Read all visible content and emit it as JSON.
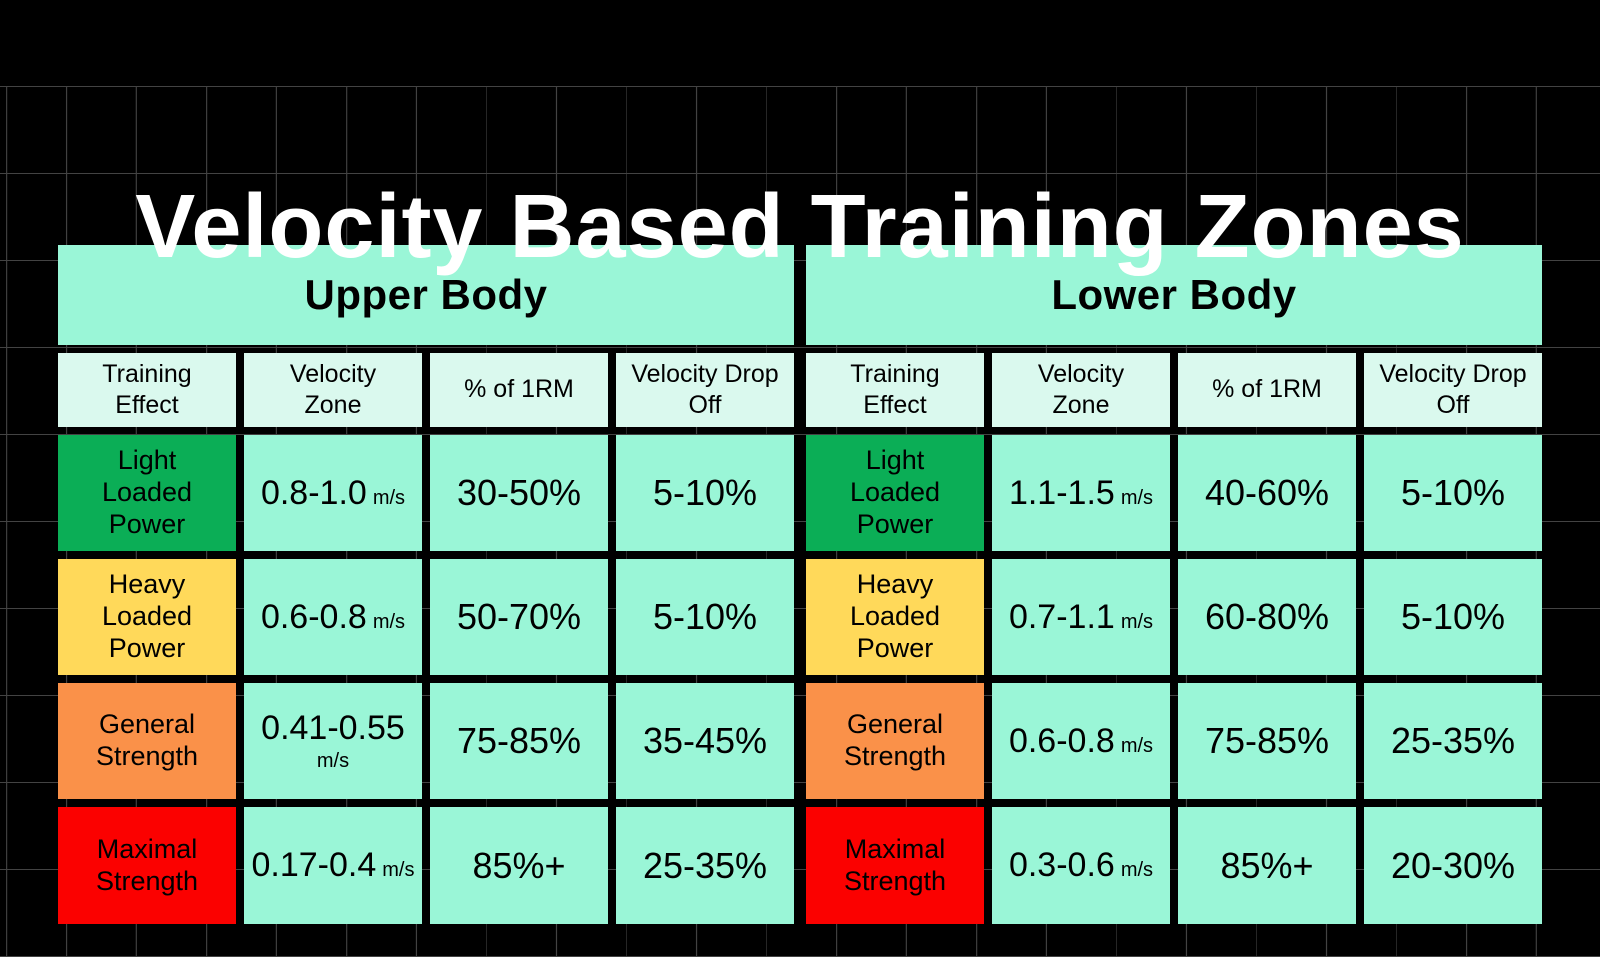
{
  "title": "Velocity Based Training Zones",
  "colors": {
    "background": "#000000",
    "grid_line": "#434343",
    "cell_mint": "#9AF6D7",
    "header_mint": "#DAF9EE",
    "light_loaded_power_green": "#0BAE56",
    "heavy_loaded_power_yellow": "#FFD95A",
    "general_strength_orange": "#FA9149",
    "maximal_strength_red": "#FB0100",
    "title_text": "#FFFFFF",
    "cell_text": "#000000"
  },
  "columns": [
    {
      "line1": "Training",
      "line2": "Effect"
    },
    {
      "line1": "Velocity",
      "line2": "Zone"
    },
    {
      "line1": "% of 1RM",
      "line2": ""
    },
    {
      "line1": "Velocity Drop",
      "line2": "Off"
    }
  ],
  "sections": [
    {
      "title": "Upper Body",
      "rows": [
        {
          "effect_line1": "Light",
          "effect_line2": "Loaded",
          "effect_line3": "Power",
          "velocity": "0.8-1.0",
          "unit": "m/s",
          "one_rm": "30-50%",
          "drop_off": "5-10%"
        },
        {
          "effect_line1": "Heavy",
          "effect_line2": "Loaded",
          "effect_line3": "Power",
          "velocity": "0.6-0.8",
          "unit": "m/s",
          "one_rm": "50-70%",
          "drop_off": "5-10%"
        },
        {
          "effect_line1": "General",
          "effect_line2": "Strength",
          "effect_line3": "",
          "velocity": "0.41-0.55",
          "unit": "m/s",
          "one_rm": "75-85%",
          "drop_off": "35-45%"
        },
        {
          "effect_line1": "Maximal",
          "effect_line2": "Strength",
          "effect_line3": "",
          "velocity": "0.17-0.4",
          "unit": "m/s",
          "one_rm": "85%+",
          "drop_off": "25-35%"
        }
      ]
    },
    {
      "title": "Lower Body",
      "rows": [
        {
          "effect_line1": "Light",
          "effect_line2": "Loaded",
          "effect_line3": "Power",
          "velocity": "1.1-1.5",
          "unit": "m/s",
          "one_rm": "40-60%",
          "drop_off": "5-10%"
        },
        {
          "effect_line1": "Heavy",
          "effect_line2": "Loaded",
          "effect_line3": "Power",
          "velocity": "0.7-1.1",
          "unit": "m/s",
          "one_rm": "60-80%",
          "drop_off": "5-10%"
        },
        {
          "effect_line1": "General",
          "effect_line2": "Strength",
          "effect_line3": "",
          "velocity": "0.6-0.8",
          "unit": "m/s",
          "one_rm": "75-85%",
          "drop_off": "25-35%"
        },
        {
          "effect_line1": "Maximal",
          "effect_line2": "Strength",
          "effect_line3": "",
          "velocity": "0.3-0.6",
          "unit": "m/s",
          "one_rm": "85%+",
          "drop_off": "20-30%"
        }
      ]
    }
  ],
  "chart_data": {
    "type": "table",
    "title": "Velocity Based Training Zones",
    "tables": [
      {
        "title": "Upper Body",
        "columns": [
          "Training Effect",
          "Velocity Zone",
          "% of 1RM",
          "Velocity Drop Off"
        ],
        "rows": [
          [
            "Light Loaded Power",
            "0.8-1.0 m/s",
            "30-50%",
            "5-10%"
          ],
          [
            "Heavy Loaded Power",
            "0.6-0.8 m/s",
            "50-70%",
            "5-10%"
          ],
          [
            "General Strength",
            "0.41-0.55 m/s",
            "75-85%",
            "35-45%"
          ],
          [
            "Maximal Strength",
            "0.17-0.4 m/s",
            "85%+",
            "25-35%"
          ]
        ]
      },
      {
        "title": "Lower Body",
        "columns": [
          "Training Effect",
          "Velocity Zone",
          "% of 1RM",
          "Velocity Drop Off"
        ],
        "rows": [
          [
            "Light Loaded Power",
            "1.1-1.5 m/s",
            "40-60%",
            "5-10%"
          ],
          [
            "Heavy Loaded Power",
            "0.7-1.1 m/s",
            "60-80%",
            "5-10%"
          ],
          [
            "General Strength",
            "0.6-0.8 m/s",
            "75-85%",
            "25-35%"
          ],
          [
            "Maximal Strength",
            "0.3-0.6 m/s",
            "85%+",
            "20-30%"
          ]
        ]
      }
    ]
  }
}
